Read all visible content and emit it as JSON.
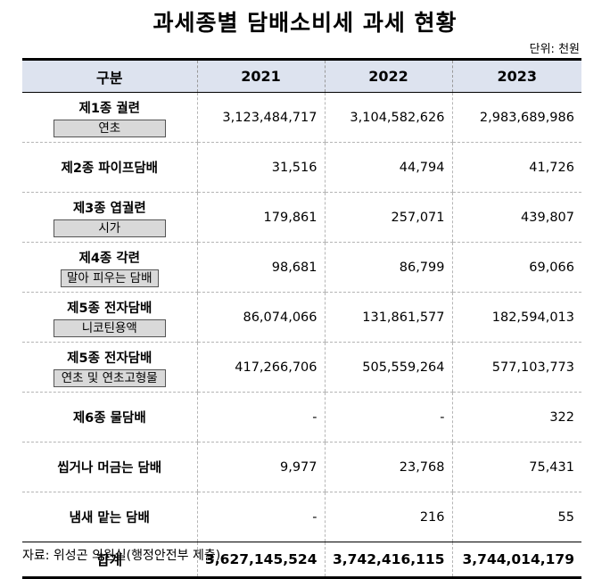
{
  "title": "과세종별 담배소비세 과세 현황",
  "unit": "단위: 천원",
  "headers": [
    "구분",
    "2021",
    "2022",
    "2023"
  ],
  "rows": [
    {
      "label": "제1종 궐련",
      "sub": "연초",
      "values": [
        "3,123,484,717",
        "3,104,582,626",
        "2,983,689,986"
      ]
    },
    {
      "label": "제2종 파이프담배",
      "sub": "",
      "values": [
        "31,516",
        "44,794",
        "41,726"
      ]
    },
    {
      "label": "제3종 엽궐련",
      "sub": "시가",
      "values": [
        "179,861",
        "257,071",
        "439,807"
      ]
    },
    {
      "label": "제4종 각련",
      "sub": "말아 피우는 담배",
      "values": [
        "98,681",
        "86,799",
        "69,066"
      ]
    },
    {
      "label": "제5종 전자담배",
      "sub": "니코틴용액",
      "values": [
        "86,074,066",
        "131,861,577",
        "182,594,013"
      ]
    },
    {
      "label": "제5종 전자담배",
      "sub": "연초 및 연초고형물",
      "values": [
        "417,266,706",
        "505,559,264",
        "577,103,773"
      ]
    },
    {
      "label": "제6종 물담배",
      "sub": "",
      "values": [
        "-",
        "-",
        "322"
      ]
    },
    {
      "label": "씹거나 머금는 담배",
      "sub": "",
      "values": [
        "9,977",
        "23,768",
        "75,431"
      ]
    },
    {
      "label": "냄새 맡는 담배",
      "sub": "",
      "values": [
        "-",
        "216",
        "55"
      ]
    }
  ],
  "total": {
    "label": "합계",
    "values": [
      "3,627,145,524",
      "3,742,416,115",
      "3,744,014,179"
    ]
  },
  "source": "자료: 위성곤 의원실(행정안전부 제출)"
}
